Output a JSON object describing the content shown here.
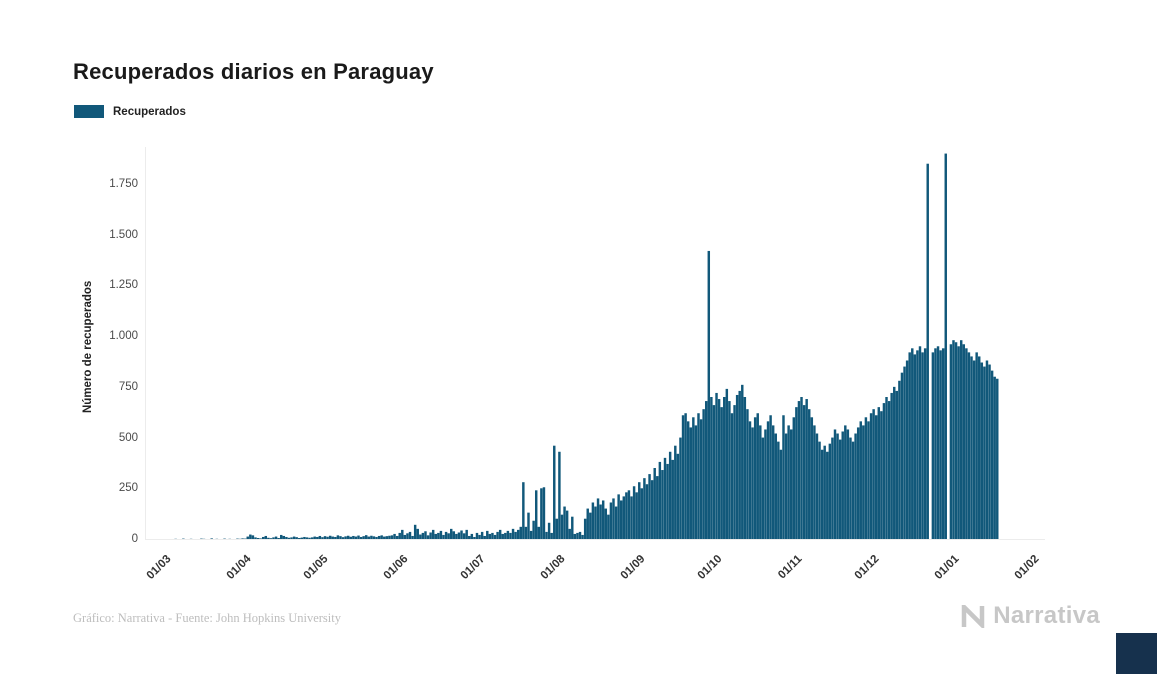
{
  "title": "Recuperados diarios en Paraguay",
  "legend": {
    "label": "Recuperados",
    "color": "#11587a"
  },
  "y_axis": {
    "label": "Número de recuperados"
  },
  "footer": {
    "credit": "Gráfico: Narrativa - Fuente: John Hopkins University",
    "brand": "Narrativa",
    "brand_color": "#c7c7c7",
    "corner_square_color": "#16314d"
  },
  "chart_data": {
    "type": "bar",
    "title": "Recuperados diarios en Paraguay",
    "xlabel": "",
    "ylabel": "Número de recuperados",
    "legend_entries": [
      "Recuperados"
    ],
    "legend_position": "top-left",
    "grid": false,
    "bar_color": "#11587a",
    "ylim": [
      0,
      1950
    ],
    "y_tick_values": [
      0,
      250,
      500,
      750,
      1000,
      1250,
      1500,
      1750
    ],
    "y_tick_labels": [
      "0",
      "250",
      "500",
      "750",
      "1.000",
      "1.250",
      "1.500",
      "1.750"
    ],
    "x_tick_labels": [
      "01/03",
      "01/04",
      "01/05",
      "01/06",
      "01/07",
      "01/08",
      "01/09",
      "01/10",
      "01/11",
      "01/12",
      "01/01",
      "01/02"
    ],
    "start_date": "2020-03-01",
    "frequency": "daily",
    "months": [
      {
        "label": "2020-03",
        "values": [
          0,
          0,
          0,
          0,
          0,
          0,
          0,
          0,
          1,
          0,
          0,
          2,
          0,
          0,
          1,
          0,
          0,
          0,
          2,
          1,
          0,
          0,
          3,
          0,
          1,
          0,
          0,
          2,
          0,
          1,
          0
        ]
      },
      {
        "label": "2020-04",
        "values": [
          0,
          2,
          1,
          3,
          2,
          12,
          22,
          18,
          8,
          5,
          3,
          10,
          15,
          6,
          4,
          8,
          12,
          5,
          20,
          15,
          10,
          6,
          8,
          12,
          9,
          5,
          7,
          10,
          8,
          6
        ]
      },
      {
        "label": "2020-05",
        "values": [
          8,
          12,
          10,
          15,
          9,
          14,
          11,
          16,
          12,
          10,
          18,
          14,
          9,
          13,
          16,
          11,
          15,
          12,
          17,
          10,
          14,
          19,
          12,
          16,
          13,
          10,
          15,
          18,
          12,
          14,
          16
        ]
      },
      {
        "label": "2020-06",
        "values": [
          18,
          25,
          15,
          30,
          45,
          20,
          28,
          35,
          15,
          70,
          50,
          22,
          30,
          38,
          18,
          32,
          45,
          25,
          30,
          40,
          20,
          35,
          28,
          50,
          38,
          25,
          32,
          42,
          28,
          45
        ]
      },
      {
        "label": "2020-07",
        "values": [
          15,
          25,
          10,
          30,
          20,
          35,
          15,
          40,
          25,
          30,
          20,
          35,
          45,
          25,
          30,
          40,
          30,
          50,
          35,
          45,
          60,
          280,
          60,
          130,
          40,
          90,
          240,
          60,
          250,
          255,
          35
        ]
      },
      {
        "label": "2020-08",
        "values": [
          80,
          30,
          460,
          100,
          430,
          120,
          160,
          140,
          50,
          110,
          25,
          30,
          35,
          20,
          100,
          150,
          130,
          180,
          160,
          200,
          170,
          190,
          150,
          120,
          180,
          200,
          160,
          220,
          190,
          210,
          230
        ]
      },
      {
        "label": "2020-09",
        "values": [
          240,
          210,
          260,
          230,
          280,
          250,
          300,
          270,
          320,
          290,
          350,
          310,
          380,
          340,
          400,
          370,
          430,
          390,
          460,
          420,
          500,
          610,
          620,
          580,
          550,
          600,
          560,
          620,
          590,
          640
        ]
      },
      {
        "label": "2020-10",
        "values": [
          680,
          1420,
          700,
          660,
          720,
          690,
          650,
          700,
          740,
          680,
          620,
          660,
          710,
          730,
          760,
          700,
          640,
          580,
          550,
          600,
          620,
          560,
          500,
          540,
          580,
          610,
          560,
          520,
          480,
          440,
          610
        ]
      },
      {
        "label": "2020-11",
        "values": [
          520,
          560,
          540,
          600,
          650,
          680,
          700,
          660,
          690,
          640,
          600,
          560,
          520,
          480,
          440,
          460,
          430,
          470,
          500,
          540,
          520,
          490,
          530,
          560,
          540,
          500,
          480,
          520,
          550,
          580
        ]
      },
      {
        "label": "2020-12",
        "values": [
          560,
          600,
          580,
          620,
          640,
          610,
          650,
          630,
          670,
          700,
          680,
          720,
          750,
          730,
          780,
          820,
          850,
          880,
          920,
          940,
          910,
          930,
          950,
          920,
          940,
          1850,
          0,
          920,
          940,
          950,
          930
        ]
      },
      {
        "label": "2021-01",
        "values": [
          940,
          1900,
          0,
          960,
          980,
          970,
          950,
          980,
          960,
          940,
          920,
          900,
          880,
          920,
          900,
          870,
          850,
          880,
          860,
          830,
          800,
          790
        ]
      }
    ]
  }
}
